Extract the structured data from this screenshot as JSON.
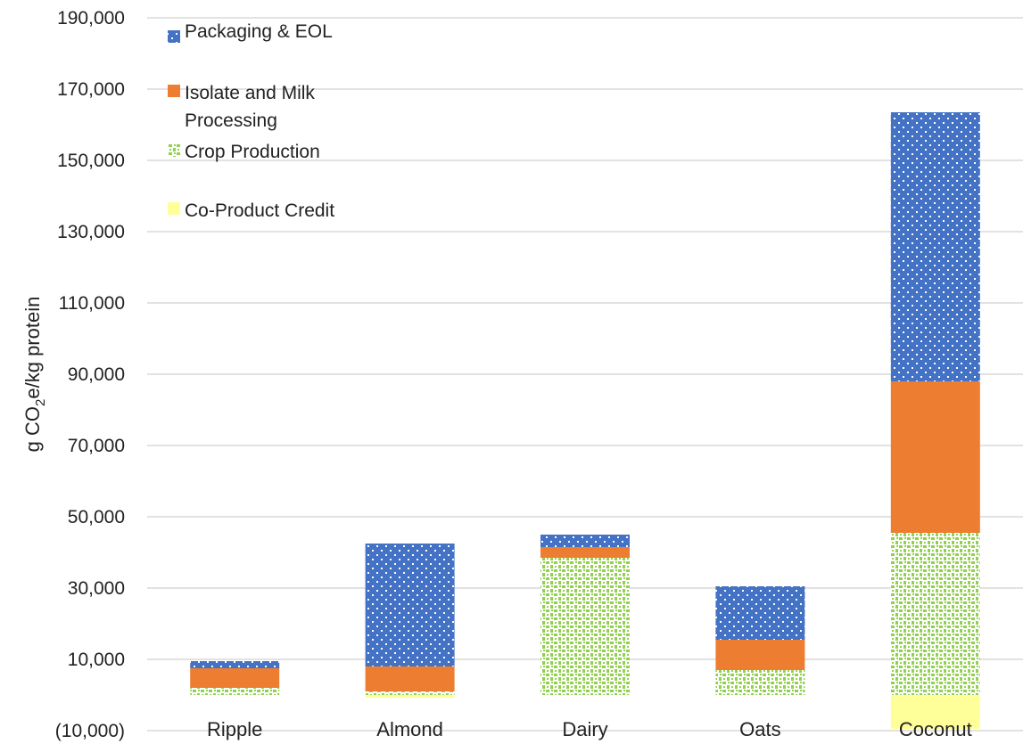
{
  "chart_data": {
    "type": "bar",
    "stacked": true,
    "categories": [
      "Ripple",
      "Almond",
      "Dairy",
      "Oats",
      "Coconut"
    ],
    "ylabel_parts": [
      "g CO",
      "2",
      "e/kg protein"
    ],
    "ylim": [
      -10000,
      190000
    ],
    "y_ticks": [
      -10000,
      10000,
      30000,
      50000,
      70000,
      90000,
      110000,
      130000,
      150000,
      170000,
      190000
    ],
    "y_tick_labels": [
      "(10,000)",
      "10,000",
      "30,000",
      "50,000",
      "70,000",
      "90,000",
      "110,000",
      "130,000",
      "150,000",
      "170,000",
      "190,000"
    ],
    "grid": true,
    "legend_position": "top-left",
    "series": [
      {
        "name": "Co-Product Credit",
        "color": "#ffff99",
        "pattern": "solid",
        "values": [
          0,
          -800,
          0,
          0,
          -9500
        ]
      },
      {
        "name": "Crop Production",
        "color": "#92d050",
        "pattern": "dots",
        "values": [
          2000,
          1000,
          38500,
          7000,
          45500
        ]
      },
      {
        "name": "Isolate and Milk Processing",
        "color": "#ed7d31",
        "pattern": "solid",
        "values": [
          5500,
          7000,
          3000,
          8500,
          42500
        ]
      },
      {
        "name": "Packaging & EOL",
        "color": "#4472c4",
        "pattern": "white-dots",
        "values": [
          2000,
          34500,
          3500,
          15000,
          75500
        ]
      }
    ],
    "legend": [
      {
        "key": "packaging",
        "label": "Packaging & EOL",
        "color": "#4472c4",
        "pattern": "white-dots"
      },
      {
        "key": "isolate",
        "label": "Isolate and Milk Processing",
        "color": "#ed7d31",
        "pattern": "solid"
      },
      {
        "key": "crop",
        "label": "Crop Production",
        "color": "#92d050",
        "pattern": "dots"
      },
      {
        "key": "coproduct",
        "label": "Co-Product Credit",
        "color": "#ffff99",
        "pattern": "solid"
      }
    ]
  }
}
